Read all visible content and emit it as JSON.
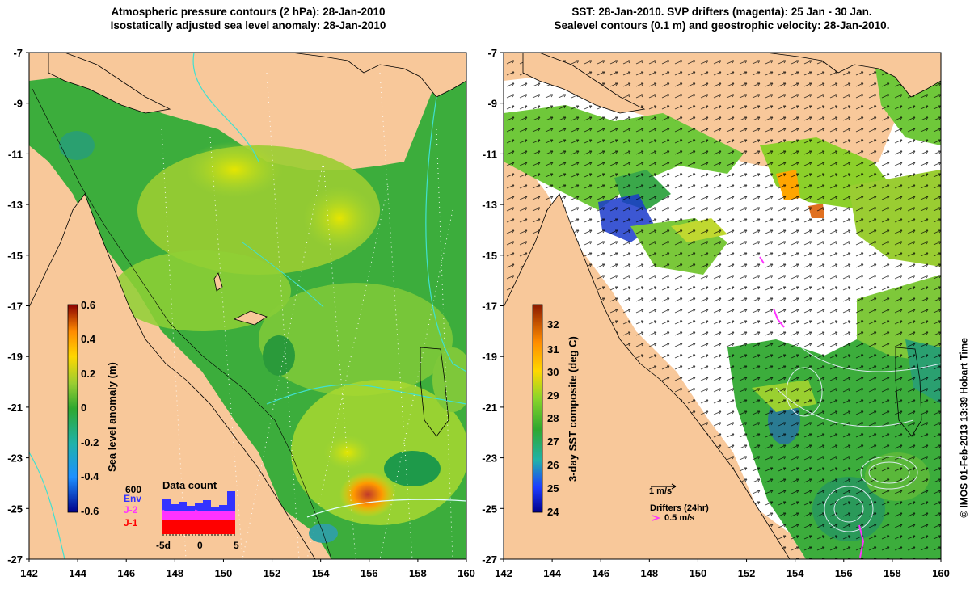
{
  "left_panel": {
    "title_line1": "Atmospheric pressure contours (2 hPa): 28-Jan-2010",
    "title_line2": "Isostatically adjusted sea level anomaly: 28-Jan-2010",
    "colorbar": {
      "label": "Sea level anomaly (m)",
      "ticks": [
        "0.6",
        "0.4",
        "0.2",
        "0",
        "-0.2",
        "-0.4",
        "-0.6"
      ],
      "range": [
        -0.6,
        0.6
      ]
    },
    "data_count": {
      "title": "Data count",
      "max_label": "600",
      "series": [
        "Env",
        "J-2",
        "J-1"
      ],
      "series_colors": [
        "#3333ff",
        "#ff33ff",
        "#ff0000"
      ],
      "x_ticks": [
        "-5d",
        "0",
        "5"
      ]
    }
  },
  "right_panel": {
    "title_line1": "SST: 28-Jan-2010. SVP drifters (magenta): 25 Jan - 30 Jan.",
    "title_line2": "Sealevel contours (0.1 m) and geostrophic velocity: 28-Jan-2010.",
    "colorbar": {
      "label": "3-day SST composite (deg C)",
      "ticks": [
        "32",
        "31",
        "30",
        "29",
        "28",
        "27",
        "26",
        "25",
        "24"
      ],
      "range": [
        24,
        33
      ]
    },
    "velocity_scale": "1 m/s",
    "drifters_label": "Drifters (24hr)",
    "drifters_speed": "0.5 m/s"
  },
  "axes": {
    "x_ticks": [
      "142",
      "144",
      "146",
      "148",
      "150",
      "152",
      "154",
      "156",
      "158",
      "160"
    ],
    "y_ticks": [
      "-7",
      "-9",
      "-11",
      "-13",
      "-15",
      "-17",
      "-19",
      "-21",
      "-23",
      "-25",
      "-27"
    ]
  },
  "credit": "© IMOS 01-Feb-2013 13:39 Hobart Time",
  "colors": {
    "land": "#f8c89a",
    "ocean_green": "#3fb43f",
    "sst_white": "#ffffff"
  }
}
